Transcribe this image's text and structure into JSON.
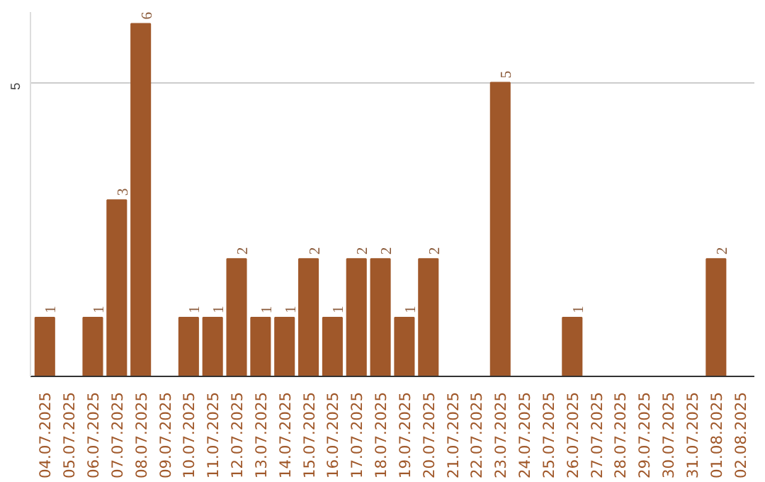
{
  "chart_data": {
    "type": "bar",
    "categories": [
      "04.07.2025",
      "05.07.2025",
      "06.07.2025",
      "07.07.2025",
      "08.07.2025",
      "09.07.2025",
      "10.07.2025",
      "11.07.2025",
      "12.07.2025",
      "13.07.2025",
      "14.07.2025",
      "15.07.2025",
      "16.07.2025",
      "17.07.2025",
      "18.07.2025",
      "19.07.2025",
      "20.07.2025",
      "21.07.2025",
      "22.07.2025",
      "23.07.2025",
      "24.07.2025",
      "25.07.2025",
      "26.07.2025",
      "27.07.2025",
      "28.07.2025",
      "29.07.2025",
      "30.07.2025",
      "31.07.2025",
      "01.08.2025",
      "02.08.2025"
    ],
    "values": [
      1,
      0,
      1,
      3,
      6,
      0,
      1,
      1,
      2,
      1,
      1,
      2,
      1,
      2,
      2,
      1,
      2,
      0,
      0,
      5,
      0,
      0,
      1,
      0,
      0,
      0,
      0,
      0,
      2,
      0
    ],
    "value_labels": [
      "1",
      null,
      "1",
      "3",
      "6",
      null,
      "1",
      "1",
      "2",
      "1",
      "1",
      "2",
      "1",
      "2",
      "2",
      "1",
      "2",
      null,
      null,
      "5",
      null,
      null,
      "1",
      null,
      null,
      null,
      null,
      null,
      "2",
      null
    ],
    "color": "#a0582a",
    "ylim": [
      0,
      6.2
    ],
    "yticks": [
      5
    ],
    "grid": "y"
  }
}
